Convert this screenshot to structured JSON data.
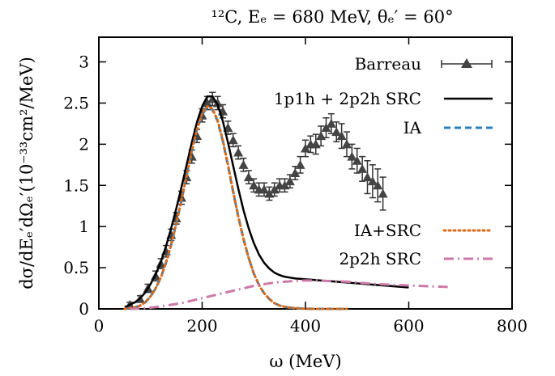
{
  "chart_data": {
    "type": "line",
    "title": "¹²C, Eₑ = 680 MeV, θₑ′ = 60°",
    "xlabel": "ω (MeV)",
    "ylabel": "dσ/dEₑ′dΩₑ′(10⁻³³cm²/MeV)",
    "xlim": [
      0,
      800
    ],
    "ylim": [
      0,
      3.3
    ],
    "x_ticks": [
      0,
      200,
      400,
      600,
      800
    ],
    "y_ticks": [
      0,
      0.5,
      1,
      1.5,
      2,
      2.5,
      3
    ],
    "x_tick_labels": [
      "0",
      "200",
      "400",
      "600",
      "800"
    ],
    "y_tick_labels": [
      "0",
      "0.5",
      "1",
      "1.5",
      "2",
      "2.5",
      "3"
    ],
    "grid": false,
    "legend_position": "top-right",
    "series": [
      {
        "name": "Barreau",
        "style": "points-errorbars",
        "color": "#000000",
        "x": [
          60,
          80,
          95,
          110,
          120,
          130,
          140,
          150,
          160,
          170,
          180,
          190,
          200,
          210,
          220,
          230,
          240,
          250,
          260,
          270,
          280,
          290,
          300,
          310,
          320,
          330,
          340,
          350,
          360,
          370,
          380,
          390,
          400,
          410,
          420,
          430,
          440,
          450,
          460,
          470,
          480,
          490,
          500,
          510,
          520,
          530,
          540,
          550
        ],
        "y": [
          0.05,
          0.12,
          0.25,
          0.4,
          0.55,
          0.7,
          0.9,
          1.1,
          1.35,
          1.6,
          1.85,
          2.1,
          2.35,
          2.5,
          2.55,
          2.5,
          2.4,
          2.2,
          2.05,
          1.9,
          1.75,
          1.6,
          1.5,
          1.45,
          1.45,
          1.4,
          1.45,
          1.5,
          1.5,
          1.55,
          1.65,
          1.75,
          1.95,
          2.0,
          2.0,
          2.1,
          2.2,
          2.25,
          2.15,
          2.1,
          2.0,
          1.85,
          1.8,
          1.7,
          1.6,
          1.55,
          1.5,
          1.4
        ],
        "err": [
          0.03,
          0.04,
          0.05,
          0.06,
          0.06,
          0.07,
          0.07,
          0.07,
          0.08,
          0.08,
          0.08,
          0.08,
          0.08,
          0.08,
          0.08,
          0.08,
          0.08,
          0.08,
          0.08,
          0.08,
          0.08,
          0.08,
          0.08,
          0.08,
          0.08,
          0.08,
          0.08,
          0.08,
          0.08,
          0.08,
          0.08,
          0.1,
          0.1,
          0.1,
          0.12,
          0.12,
          0.12,
          0.12,
          0.12,
          0.15,
          0.15,
          0.15,
          0.15,
          0.15,
          0.2,
          0.2,
          0.2,
          0.2
        ]
      },
      {
        "name": "1p1h + 2p2h SRC",
        "style": "solid",
        "color": "#000000",
        "x": [
          50,
          60,
          70,
          80,
          90,
          100,
          110,
          120,
          130,
          140,
          150,
          160,
          170,
          180,
          190,
          200,
          210,
          220,
          230,
          240,
          250,
          260,
          270,
          280,
          290,
          300,
          310,
          320,
          330,
          340,
          350,
          360,
          370,
          380,
          390,
          400,
          420,
          440,
          460,
          480,
          500,
          520,
          540,
          560,
          580,
          600
        ],
        "y": [
          0.02,
          0.05,
          0.08,
          0.13,
          0.2,
          0.3,
          0.42,
          0.57,
          0.76,
          0.98,
          1.22,
          1.48,
          1.75,
          2.02,
          2.27,
          2.46,
          2.58,
          2.58,
          2.48,
          2.28,
          2.02,
          1.74,
          1.46,
          1.2,
          0.98,
          0.8,
          0.66,
          0.56,
          0.49,
          0.44,
          0.41,
          0.39,
          0.38,
          0.37,
          0.365,
          0.36,
          0.35,
          0.34,
          0.33,
          0.32,
          0.31,
          0.3,
          0.29,
          0.28,
          0.27,
          0.26
        ]
      },
      {
        "name": "IA",
        "style": "dashed",
        "color": "#2a7fc1",
        "x": [
          50,
          60,
          70,
          80,
          90,
          100,
          110,
          120,
          130,
          140,
          150,
          160,
          170,
          180,
          190,
          200,
          210,
          220,
          230,
          240,
          250,
          260,
          270,
          280,
          290,
          300,
          310,
          320,
          330,
          340,
          350,
          360,
          370,
          380,
          390,
          400,
          420,
          440,
          460,
          480
        ],
        "y": [
          0.0,
          0.01,
          0.02,
          0.04,
          0.08,
          0.15,
          0.25,
          0.38,
          0.56,
          0.78,
          1.04,
          1.32,
          1.62,
          1.92,
          2.18,
          2.36,
          2.45,
          2.42,
          2.28,
          2.04,
          1.74,
          1.42,
          1.12,
          0.85,
          0.62,
          0.43,
          0.29,
          0.19,
          0.12,
          0.07,
          0.04,
          0.025,
          0.015,
          0.01,
          0.005,
          0.002,
          0.0,
          0.0,
          0.0,
          0.0
        ]
      },
      {
        "name": "IA+SRC",
        "style": "dotted",
        "color": "#d96a1a",
        "x": [
          50,
          60,
          70,
          80,
          90,
          100,
          110,
          120,
          130,
          140,
          150,
          160,
          170,
          180,
          190,
          200,
          210,
          220,
          230,
          240,
          250,
          260,
          270,
          280,
          290,
          300,
          310,
          320,
          330,
          340,
          350,
          360,
          370,
          380,
          390,
          400,
          420,
          440,
          460,
          480
        ],
        "y": [
          0.0,
          0.01,
          0.02,
          0.04,
          0.08,
          0.15,
          0.25,
          0.38,
          0.56,
          0.78,
          1.04,
          1.32,
          1.62,
          1.92,
          2.18,
          2.37,
          2.46,
          2.43,
          2.29,
          2.05,
          1.75,
          1.43,
          1.12,
          0.85,
          0.62,
          0.43,
          0.29,
          0.19,
          0.12,
          0.07,
          0.04,
          0.025,
          0.015,
          0.01,
          0.005,
          0.002,
          0.0,
          0.0,
          0.0,
          0.0
        ]
      },
      {
        "name": "2p2h SRC",
        "style": "dashdot",
        "color": "#cc79a7",
        "x": [
          60,
          80,
          100,
          120,
          140,
          160,
          180,
          200,
          220,
          240,
          260,
          280,
          300,
          320,
          340,
          360,
          380,
          400,
          420,
          440,
          460,
          480,
          500,
          520,
          540,
          560,
          580,
          600,
          620,
          640,
          660,
          680
        ],
        "y": [
          0.0,
          0.005,
          0.015,
          0.03,
          0.05,
          0.07,
          0.1,
          0.13,
          0.16,
          0.19,
          0.22,
          0.25,
          0.28,
          0.3,
          0.32,
          0.33,
          0.34,
          0.345,
          0.345,
          0.34,
          0.335,
          0.33,
          0.32,
          0.31,
          0.3,
          0.295,
          0.29,
          0.285,
          0.28,
          0.275,
          0.27,
          0.265
        ]
      }
    ]
  }
}
